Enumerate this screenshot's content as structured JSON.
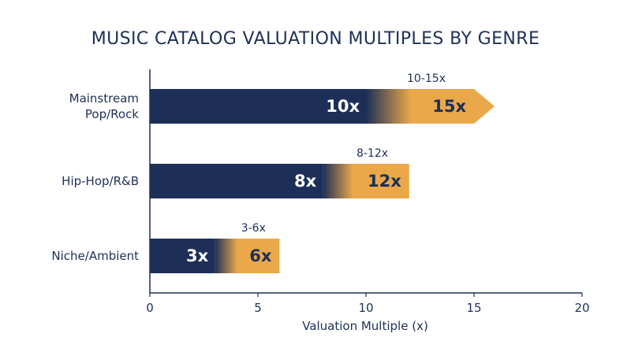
{
  "colors": {
    "base": "#1d2f57",
    "upper": "#eaa84a",
    "text": "#1f2f57",
    "axis": "#1f2f57",
    "background": "#ffffff"
  },
  "chart_data": {
    "type": "bar",
    "orientation": "horizontal",
    "title": "MUSIC CATALOG VALUATION MULTIPLES BY GENRE",
    "xlabel": "Valuation Multiple (x)",
    "ylabel": "",
    "xlim": [
      0,
      20
    ],
    "xticks": [
      0,
      5,
      10,
      15,
      20
    ],
    "grid": false,
    "categories": [
      "Mainstream Pop/Rock",
      "Hip-Hop/R&B",
      "Niche/Ambient"
    ],
    "category_lines": [
      [
        "Mainstream",
        "Pop/Rock"
      ],
      [
        "Hip-Hop/R&B"
      ],
      [
        "Niche/Ambient"
      ]
    ],
    "series": [
      {
        "values": [
          10,
          8,
          3
        ],
        "labels": [
          "10x",
          "8x",
          "3x"
        ]
      },
      {
        "values": [
          15,
          12,
          6
        ],
        "labels": [
          "15x",
          "12x",
          "6x"
        ]
      }
    ],
    "range_labels": [
      "10-15x",
      "8-12x",
      "3-6x"
    ],
    "arrow_on_first": true
  }
}
